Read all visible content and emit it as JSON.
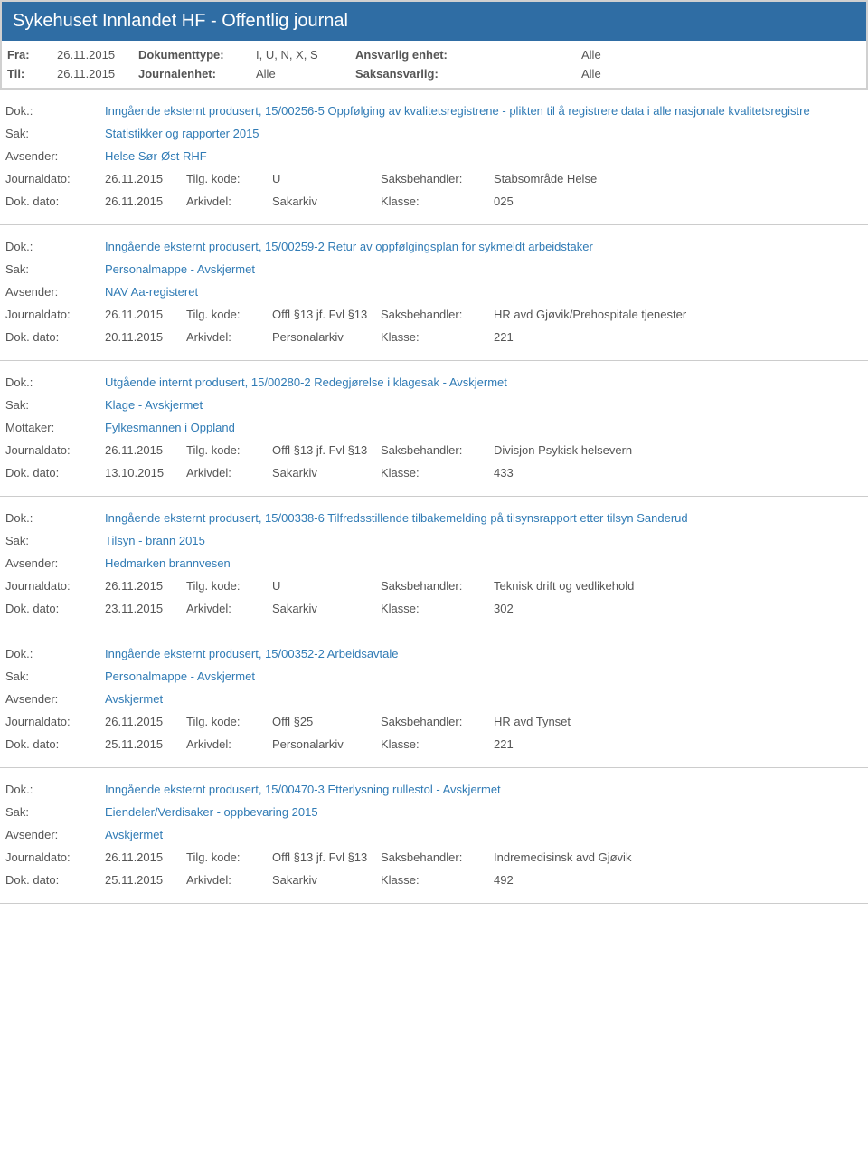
{
  "header": {
    "title": "Sykehuset Innlandet HF - Offentlig journal"
  },
  "meta": {
    "fra_label": "Fra:",
    "fra_val": "26.11.2015",
    "til_label": "Til:",
    "til_val": "26.11.2015",
    "doktype_label": "Dokumenttype:",
    "doktype_val": "I, U, N, X, S",
    "journalenhet_label": "Journalenhet:",
    "journalenhet_val": "Alle",
    "ansvarlig_label": "Ansvarlig enhet:",
    "ansvarlig_val": "Alle",
    "saksansvarlig_label": "Saksansvarlig:",
    "saksansvarlig_val": "Alle"
  },
  "labels": {
    "dok": "Dok.:",
    "sak": "Sak:",
    "avsender": "Avsender:",
    "mottaker": "Mottaker:",
    "journaldato": "Journaldato:",
    "dokdato": "Dok. dato:",
    "tilgkode": "Tilg. kode:",
    "arkivdel": "Arkivdel:",
    "saksbehandler": "Saksbehandler:",
    "klasse": "Klasse:"
  },
  "entries": [
    {
      "dok": "Inngående eksternt produsert, 15/00256-5 Oppfølging av kvalitetsregistrene - plikten til å registrere data i alle nasjonale kvalitetsregistre",
      "sak": "Statistikker og rapporter 2015",
      "party_label": "Avsender:",
      "party": "Helse Sør-Øst RHF",
      "journaldato": "26.11.2015",
      "dokdato": "26.11.2015",
      "tilgkode": "U",
      "arkivdel": "Sakarkiv",
      "saksbehandler": "Stabsområde Helse",
      "klasse": "025"
    },
    {
      "dok": "Inngående eksternt produsert, 15/00259-2 Retur av oppfølgingsplan for sykmeldt arbeidstaker",
      "sak": "Personalmappe - Avskjermet",
      "party_label": "Avsender:",
      "party": "NAV Aa-registeret",
      "journaldato": "26.11.2015",
      "dokdato": "20.11.2015",
      "tilgkode": "Offl §13 jf. Fvl §13",
      "arkivdel": "Personalarkiv",
      "saksbehandler": "HR avd Gjøvik/Prehospitale tjenester",
      "klasse": "221"
    },
    {
      "dok": "Utgående internt produsert, 15/00280-2 Redegjørelse i klagesak - Avskjermet",
      "sak": "Klage - Avskjermet",
      "party_label": "Mottaker:",
      "party": "Fylkesmannen i Oppland",
      "journaldato": "26.11.2015",
      "dokdato": "13.10.2015",
      "tilgkode": "Offl §13 jf. Fvl §13",
      "arkivdel": "Sakarkiv",
      "saksbehandler": "Divisjon Psykisk helsevern",
      "klasse": "433"
    },
    {
      "dok": "Inngående eksternt produsert, 15/00338-6 Tilfredsstillende tilbakemelding på tilsynsrapport etter tilsyn Sanderud",
      "sak": "Tilsyn - brann 2015",
      "party_label": "Avsender:",
      "party": "Hedmarken brannvesen",
      "journaldato": "26.11.2015",
      "dokdato": "23.11.2015",
      "tilgkode": "U",
      "arkivdel": "Sakarkiv",
      "saksbehandler": "Teknisk drift og vedlikehold",
      "klasse": "302"
    },
    {
      "dok": "Inngående eksternt produsert, 15/00352-2 Arbeidsavtale",
      "sak": "Personalmappe - Avskjermet",
      "party_label": "Avsender:",
      "party": "Avskjermet",
      "journaldato": "26.11.2015",
      "dokdato": "25.11.2015",
      "tilgkode": "Offl §25",
      "arkivdel": "Personalarkiv",
      "saksbehandler": "HR avd Tynset",
      "klasse": "221"
    },
    {
      "dok": "Inngående eksternt produsert, 15/00470-3 Etterlysning rullestol - Avskjermet",
      "sak": "Eiendeler/Verdisaker - oppbevaring 2015",
      "party_label": "Avsender:",
      "party": "Avskjermet",
      "journaldato": "26.11.2015",
      "dokdato": "25.11.2015",
      "tilgkode": "Offl §13 jf. Fvl §13",
      "arkivdel": "Sakarkiv",
      "saksbehandler": "Indremedisinsk avd Gjøvik",
      "klasse": "492"
    }
  ]
}
